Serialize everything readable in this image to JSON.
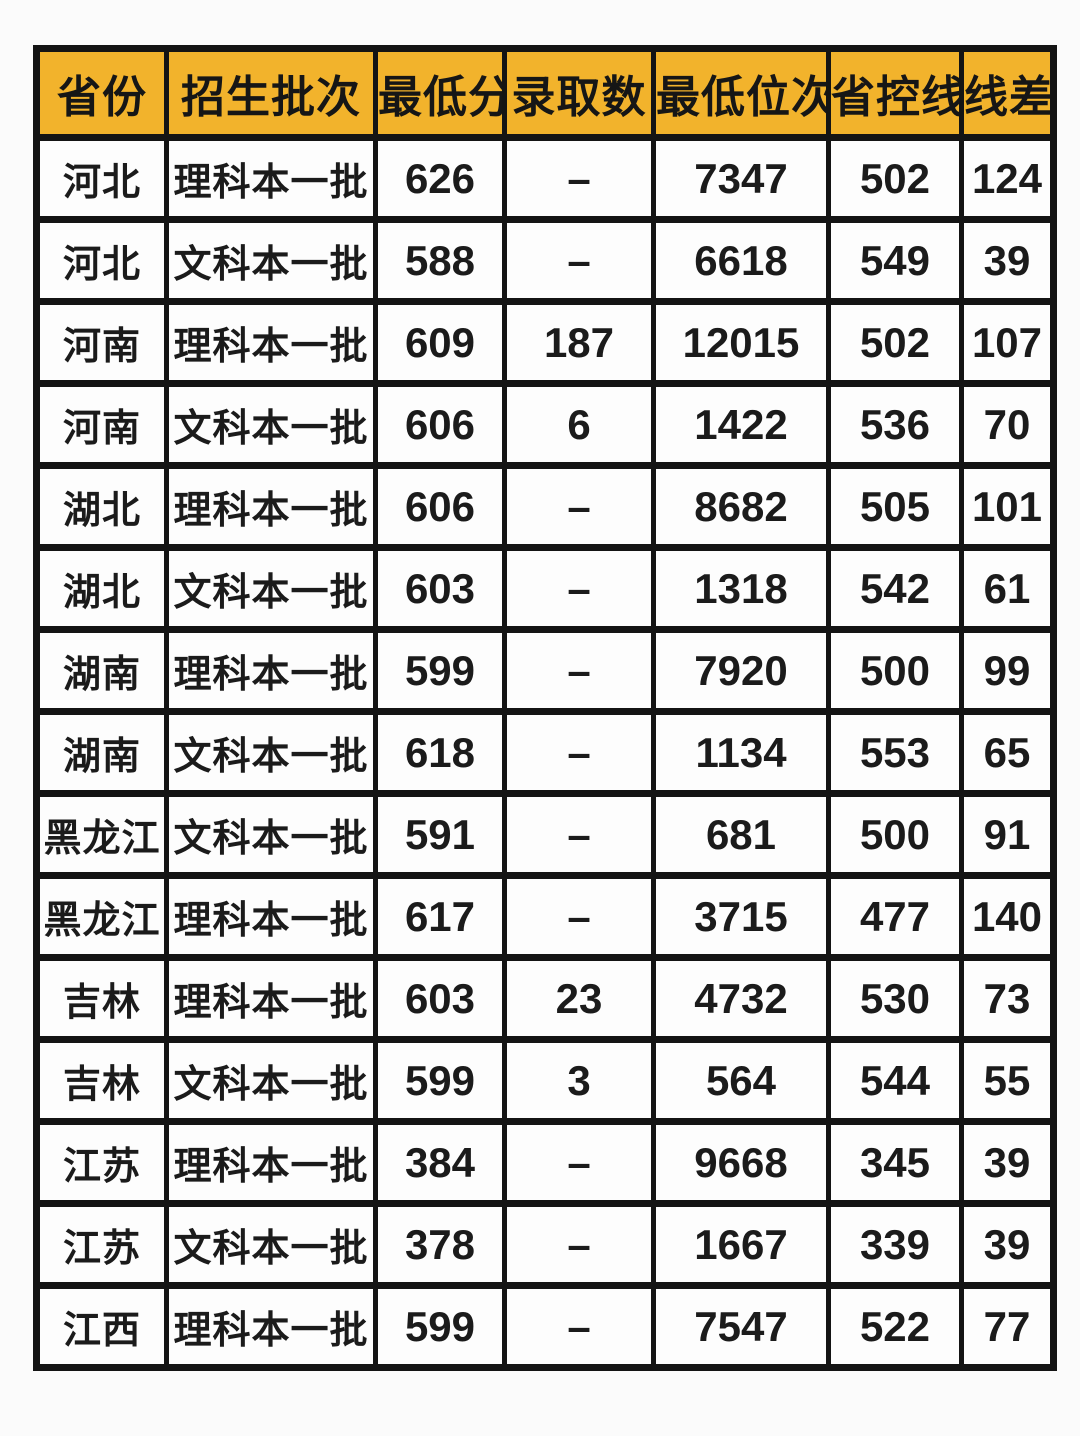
{
  "page": {
    "background_color": "#fbfbfb"
  },
  "table": {
    "description": "university admission minimum scores by province and batch",
    "style": {
      "header_bg": "#F2B32C",
      "header_text_color": "#161616",
      "border_color": "#141414",
      "cell_bg": "#FDFDFD",
      "cell_text_color": "#1B1B1B"
    },
    "headers": [
      "省份",
      "招生批次",
      "最低分",
      "录取数",
      "最低位次",
      "省控线",
      "线差"
    ],
    "rows": [
      {
        "province": "河北",
        "batch": "理科本一批",
        "min_score": "626",
        "admit_count": "–",
        "min_rank": "7347",
        "control_line": "502",
        "diff": "124"
      },
      {
        "province": "河北",
        "batch": "文科本一批",
        "min_score": "588",
        "admit_count": "–",
        "min_rank": "6618",
        "control_line": "549",
        "diff": "39"
      },
      {
        "province": "河南",
        "batch": "理科本一批",
        "min_score": "609",
        "admit_count": "187",
        "min_rank": "12015",
        "control_line": "502",
        "diff": "107"
      },
      {
        "province": "河南",
        "batch": "文科本一批",
        "min_score": "606",
        "admit_count": "6",
        "min_rank": "1422",
        "control_line": "536",
        "diff": "70"
      },
      {
        "province": "湖北",
        "batch": "理科本一批",
        "min_score": "606",
        "admit_count": "–",
        "min_rank": "8682",
        "control_line": "505",
        "diff": "101"
      },
      {
        "province": "湖北",
        "batch": "文科本一批",
        "min_score": "603",
        "admit_count": "–",
        "min_rank": "1318",
        "control_line": "542",
        "diff": "61"
      },
      {
        "province": "湖南",
        "batch": "理科本一批",
        "min_score": "599",
        "admit_count": "–",
        "min_rank": "7920",
        "control_line": "500",
        "diff": "99"
      },
      {
        "province": "湖南",
        "batch": "文科本一批",
        "min_score": "618",
        "admit_count": "–",
        "min_rank": "1134",
        "control_line": "553",
        "diff": "65"
      },
      {
        "province": "黑龙江",
        "batch": "文科本一批",
        "min_score": "591",
        "admit_count": "–",
        "min_rank": "681",
        "control_line": "500",
        "diff": "91"
      },
      {
        "province": "黑龙江",
        "batch": "理科本一批",
        "min_score": "617",
        "admit_count": "–",
        "min_rank": "3715",
        "control_line": "477",
        "diff": "140"
      },
      {
        "province": "吉林",
        "batch": "理科本一批",
        "min_score": "603",
        "admit_count": "23",
        "min_rank": "4732",
        "control_line": "530",
        "diff": "73"
      },
      {
        "province": "吉林",
        "batch": "文科本一批",
        "min_score": "599",
        "admit_count": "3",
        "min_rank": "564",
        "control_line": "544",
        "diff": "55"
      },
      {
        "province": "江苏",
        "batch": "理科本一批",
        "min_score": "384",
        "admit_count": "–",
        "min_rank": "9668",
        "control_line": "345",
        "diff": "39"
      },
      {
        "province": "江苏",
        "batch": "文科本一批",
        "min_score": "378",
        "admit_count": "–",
        "min_rank": "1667",
        "control_line": "339",
        "diff": "39"
      },
      {
        "province": "江西",
        "batch": "理科本一批",
        "min_score": "599",
        "admit_count": "–",
        "min_rank": "7547",
        "control_line": "522",
        "diff": "77"
      }
    ]
  },
  "chart_data": {
    "type": "table",
    "columns": [
      "省份",
      "招生批次",
      "最低分",
      "录取数",
      "最低位次",
      "省控线",
      "线差"
    ],
    "rows": [
      [
        "河北",
        "理科本一批",
        626,
        null,
        7347,
        502,
        124
      ],
      [
        "河北",
        "文科本一批",
        588,
        null,
        6618,
        549,
        39
      ],
      [
        "河南",
        "理科本一批",
        609,
        187,
        12015,
        502,
        107
      ],
      [
        "河南",
        "文科本一批",
        606,
        6,
        1422,
        536,
        70
      ],
      [
        "湖北",
        "理科本一批",
        606,
        null,
        8682,
        505,
        101
      ],
      [
        "湖北",
        "文科本一批",
        603,
        null,
        1318,
        542,
        61
      ],
      [
        "湖南",
        "理科本一批",
        599,
        null,
        7920,
        500,
        99
      ],
      [
        "湖南",
        "文科本一批",
        618,
        null,
        1134,
        553,
        65
      ],
      [
        "黑龙江",
        "文科本一批",
        591,
        null,
        681,
        500,
        91
      ],
      [
        "黑龙江",
        "理科本一批",
        617,
        null,
        3715,
        477,
        140
      ],
      [
        "吉林",
        "理科本一批",
        603,
        23,
        4732,
        530,
        73
      ],
      [
        "吉林",
        "文科本一批",
        599,
        3,
        564,
        544,
        55
      ],
      [
        "江苏",
        "理科本一批",
        384,
        null,
        9668,
        345,
        39
      ],
      [
        "江苏",
        "文科本一批",
        378,
        null,
        1667,
        339,
        39
      ],
      [
        "江西",
        "理科本一批",
        599,
        null,
        7547,
        522,
        77
      ]
    ],
    "notes": "dash (–) shown in image for missing 录取数 values; last row (江西) partially cut off at bottom edge"
  }
}
